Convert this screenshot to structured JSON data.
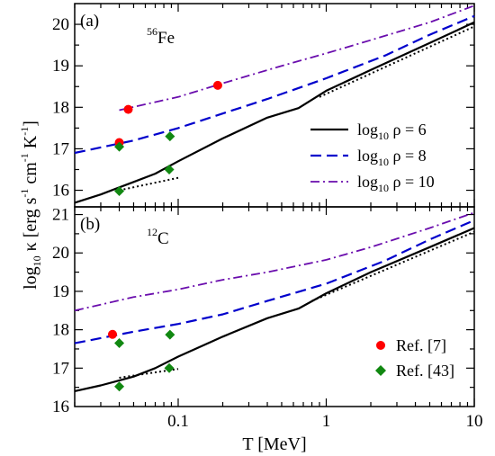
{
  "chart_data": [
    {
      "type": "line",
      "panel_label": "(a)",
      "nucleus": {
        "mass_number": "56",
        "element": "Fe"
      },
      "xscale": "log",
      "xlim": [
        0.02,
        10
      ],
      "ylim": [
        15.6,
        20.5
      ],
      "yticks": [
        16,
        17,
        18,
        19,
        20
      ],
      "ytick_labels": [
        "16",
        "17",
        "18",
        "19",
        "20"
      ],
      "series": [
        {
          "name": "log10 ρ = 6",
          "style": "solid",
          "color": "#000000",
          "x": [
            0.02,
            0.03,
            0.05,
            0.07,
            0.1,
            0.2,
            0.4,
            0.65,
            1,
            2,
            5,
            10
          ],
          "y": [
            15.7,
            15.9,
            16.2,
            16.4,
            16.7,
            17.25,
            17.75,
            17.98,
            18.4,
            18.9,
            19.55,
            20.05
          ]
        },
        {
          "name": "log10 ρ = 8",
          "style": "dashed",
          "color": "#0000cc",
          "x": [
            0.02,
            0.05,
            0.1,
            0.2,
            0.4,
            1,
            2.5,
            5,
            10
          ],
          "y": [
            16.9,
            17.2,
            17.5,
            17.85,
            18.2,
            18.7,
            19.25,
            19.75,
            20.2
          ]
        },
        {
          "name": "log10 ρ = 10",
          "style": "dashdot",
          "color": "#6a0dad",
          "x": [
            0.04,
            0.1,
            0.2,
            0.5,
            1,
            2,
            5,
            10
          ],
          "y": [
            17.93,
            18.25,
            18.58,
            19.0,
            19.3,
            19.62,
            20.05,
            20.45
          ]
        }
      ],
      "reference_lines": [
        {
          "style": "dotted",
          "color": "#000000",
          "x": [
            0.04,
            0.1
          ],
          "y": [
            16.0,
            16.3
          ]
        },
        {
          "style": "dotted",
          "color": "#000000",
          "x": [
            0.9,
            10
          ],
          "y": [
            18.25,
            19.95
          ]
        }
      ],
      "markers": [
        {
          "name": "Ref. [7]",
          "shape": "circle",
          "color": "#ff0000",
          "x": [
            0.04,
            0.046,
            0.185
          ],
          "y": [
            17.15,
            17.95,
            18.53
          ]
        },
        {
          "name": "Ref. [43]",
          "shape": "diamond",
          "color": "#118811",
          "x": [
            0.04,
            0.04,
            0.087,
            0.088
          ],
          "y": [
            15.98,
            17.05,
            16.5,
            17.3
          ]
        }
      ],
      "legend": {
        "placement": "right",
        "entries": [
          {
            "pre": "log",
            "sub": "10",
            "post": " ρ = 6",
            "style": "solid",
            "color": "#000000"
          },
          {
            "pre": "log",
            "sub": "10",
            "post": " ρ = 8",
            "style": "dashed",
            "color": "#0000cc"
          },
          {
            "pre": "log",
            "sub": "10",
            "post": " ρ = 10",
            "style": "dashdot",
            "color": "#6a0dad"
          }
        ]
      }
    },
    {
      "type": "line",
      "panel_label": "(b)",
      "nucleus": {
        "mass_number": "12",
        "element": "C"
      },
      "xscale": "log",
      "xlim": [
        0.02,
        10
      ],
      "ylim": [
        16.0,
        21.2
      ],
      "yticks": [
        16,
        17,
        18,
        19,
        20,
        21
      ],
      "ytick_labels": [
        "16",
        "17",
        "18",
        "19",
        "20",
        "21"
      ],
      "xticks": [
        0.1,
        1,
        10
      ],
      "xtick_labels": [
        "0.1",
        "1",
        "10"
      ],
      "series": [
        {
          "name": "log10 ρ = 6",
          "style": "solid",
          "color": "#000000",
          "x": [
            0.02,
            0.03,
            0.05,
            0.07,
            0.1,
            0.2,
            0.4,
            0.65,
            1,
            2,
            5,
            10
          ],
          "y": [
            16.4,
            16.55,
            16.78,
            17.0,
            17.3,
            17.82,
            18.3,
            18.55,
            18.95,
            19.5,
            20.15,
            20.65
          ]
        },
        {
          "name": "log10 ρ = 8",
          "style": "dashed",
          "color": "#0000cc",
          "x": [
            0.02,
            0.05,
            0.1,
            0.2,
            0.4,
            1,
            2.5,
            5,
            10
          ],
          "y": [
            17.65,
            17.95,
            18.15,
            18.4,
            18.75,
            19.2,
            19.8,
            20.35,
            20.85
          ]
        },
        {
          "name": "log10 ρ = 10",
          "style": "dashdot",
          "color": "#6a0dad",
          "x": [
            0.02,
            0.05,
            0.1,
            0.2,
            0.4,
            1,
            2,
            5,
            10
          ],
          "y": [
            18.5,
            18.85,
            19.05,
            19.3,
            19.5,
            19.82,
            20.15,
            20.65,
            21.05
          ]
        }
      ],
      "reference_lines": [
        {
          "style": "dotted",
          "color": "#000000",
          "x": [
            0.04,
            0.1
          ],
          "y": [
            16.75,
            16.98
          ]
        },
        {
          "style": "dotted",
          "color": "#000000",
          "x": [
            0.8,
            10
          ],
          "y": [
            18.75,
            20.55
          ]
        }
      ],
      "markers": [
        {
          "name": "Ref. [7]",
          "shape": "circle",
          "color": "#ff0000",
          "x": [
            0.036
          ],
          "y": [
            17.88
          ]
        },
        {
          "name": "Ref. [43]",
          "shape": "diamond",
          "color": "#118811",
          "x": [
            0.04,
            0.04,
            0.087,
            0.088
          ],
          "y": [
            16.52,
            17.65,
            17.0,
            17.87
          ]
        }
      ],
      "legend": {
        "placement": "bottom-right",
        "entries": [
          {
            "text": "Ref. [7]",
            "shape": "circle",
            "color": "#ff0000"
          },
          {
            "text": "Ref. [43]",
            "shape": "diamond",
            "color": "#118811"
          }
        ]
      }
    }
  ],
  "axes": {
    "xlabel": "T [MeV]",
    "ylabel": {
      "pre": "log",
      "sub": "10",
      "mid": " κ [erg s",
      "sup1": "-1",
      "mid2": " cm",
      "sup2": "-1",
      "mid3": " K",
      "sup3": "-1",
      "post": "]"
    }
  }
}
